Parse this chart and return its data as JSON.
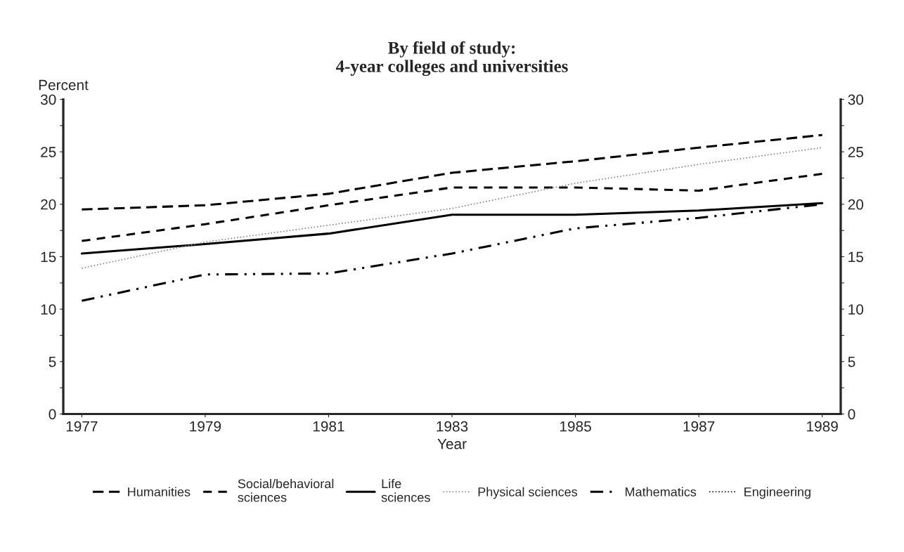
{
  "chart_data": {
    "type": "line",
    "title": "By field of study:\n4-year colleges and universities",
    "xlabel": "Year",
    "ylabel": "Percent",
    "x": [
      1977,
      1979,
      1981,
      1983,
      1985,
      1987,
      1989
    ],
    "series": [
      {
        "name": "Humanities",
        "color": "#000000",
        "line_style": "dashed",
        "values": [
          19.5,
          19.9,
          21.0,
          23.0,
          24.1,
          25.4,
          26.6
        ]
      },
      {
        "name": "Social/behavioral\nsciences",
        "color": "#000000",
        "line_style": "dashed",
        "values": [
          16.5,
          18.1,
          19.9,
          21.6,
          21.6,
          21.3,
          22.9
        ]
      },
      {
        "name": "Life\nsciences",
        "color": "#000000",
        "line_style": "solid",
        "values": [
          15.3,
          16.2,
          17.2,
          19.0,
          19.0,
          19.4,
          20.1
        ]
      },
      {
        "name": "Physical sciences",
        "color": "#888888",
        "line_style": "dotted",
        "values": [
          13.9,
          16.4,
          18.0,
          19.6,
          22.0,
          23.8,
          25.4
        ]
      },
      {
        "name": "Mathematics",
        "color": "#000000",
        "line_style": "dashdot",
        "values": [
          10.8,
          13.3,
          13.4,
          15.3,
          17.7,
          18.7,
          20.0
        ]
      },
      {
        "name": "Engineering",
        "color": "#000000",
        "line_style": "dotted",
        "values": [
          null,
          null,
          null,
          null,
          null,
          null,
          null
        ]
      }
    ],
    "xlim": [
      1976.7,
      1989.3
    ],
    "xticks": [
      1977,
      1979,
      1981,
      1983,
      1985,
      1987,
      1989
    ],
    "ylim": [
      0,
      30
    ],
    "yticks": [
      0,
      {
        "value": 2.5,
        "label": null
      },
      5,
      {
        "value": 7.5,
        "label": null
      },
      10,
      {
        "value": 12.5,
        "label": null
      },
      15,
      {
        "value": 17.5,
        "label": null
      },
      20,
      {
        "value": 22.5,
        "label": null
      },
      25,
      {
        "value": 27.5,
        "label": null
      },
      30
    ],
    "y2lim": [
      0,
      30
    ],
    "y2ticks": [
      0,
      {
        "value": 2.5,
        "label": null
      },
      5,
      {
        "value": 7.5,
        "label": null
      },
      10,
      {
        "value": 12.5,
        "label": null
      },
      15,
      {
        "value": 17.5,
        "label": null
      },
      20,
      {
        "value": 22.5,
        "label": null
      },
      25,
      {
        "value": 27.5,
        "label": null
      },
      30
    ],
    "legend": "bottom",
    "grid": false
  }
}
